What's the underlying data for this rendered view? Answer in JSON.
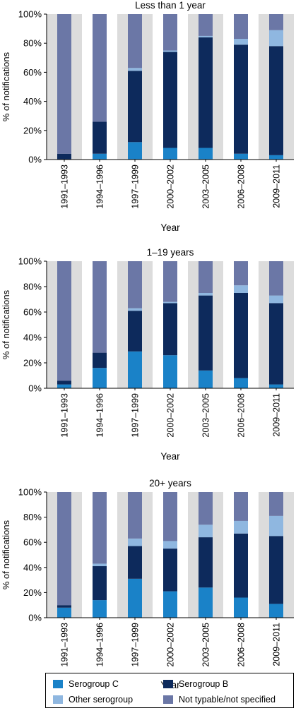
{
  "chart_data": [
    {
      "type": "bar",
      "stacked": true,
      "title": "Less than 1 year",
      "xlabel": "Year",
      "ylabel": "% of notifications",
      "ylim": [
        0,
        100
      ],
      "yticks": [
        "0%",
        "20%",
        "40%",
        "60%",
        "80%",
        "100%"
      ],
      "categories": [
        "1991–1993",
        "1994–1996",
        "1997–1999",
        "2000–2002",
        "2003–2005",
        "2006–2008",
        "2009–2011"
      ],
      "series": [
        {
          "name": "Serogroup C",
          "values": [
            0,
            4,
            12,
            8,
            8,
            4,
            3
          ]
        },
        {
          "name": "Serogroup B",
          "values": [
            4,
            22,
            49,
            66,
            76,
            75,
            75
          ]
        },
        {
          "name": "Other serogroup",
          "values": [
            0,
            0,
            2,
            1,
            1,
            4,
            11
          ]
        },
        {
          "name": "Not typable/not specified",
          "values": [
            96,
            74,
            37,
            25,
            15,
            17,
            11
          ]
        }
      ]
    },
    {
      "type": "bar",
      "stacked": true,
      "title": "1–19 years",
      "xlabel": "Year",
      "ylabel": "% of notifications",
      "ylim": [
        0,
        100
      ],
      "yticks": [
        "0%",
        "20%",
        "40%",
        "60%",
        "80%",
        "100%"
      ],
      "categories": [
        "1991–1993",
        "1994–1996",
        "1997–1999",
        "2000–2002",
        "2003–2005",
        "2006–2008",
        "2009–2011"
      ],
      "series": [
        {
          "name": "Serogroup C",
          "values": [
            3,
            16,
            29,
            26,
            14,
            8,
            3
          ]
        },
        {
          "name": "Serogroup B",
          "values": [
            3,
            12,
            32,
            41,
            59,
            67,
            64
          ]
        },
        {
          "name": "Other serogroup",
          "values": [
            0,
            0,
            2,
            1,
            2,
            6,
            6
          ]
        },
        {
          "name": "Not typable/not specified",
          "values": [
            94,
            72,
            37,
            32,
            25,
            19,
            27
          ]
        }
      ]
    },
    {
      "type": "bar",
      "stacked": true,
      "title": "20+ years",
      "xlabel": "Year",
      "ylabel": "% of notifications",
      "ylim": [
        0,
        100
      ],
      "yticks": [
        "0%",
        "20%",
        "40%",
        "60%",
        "80%",
        "100%"
      ],
      "categories": [
        "1991–1993",
        "1994–1996",
        "1997–1999",
        "2000–2002",
        "2003–2005",
        "2006–2008",
        "2009–2011"
      ],
      "series": [
        {
          "name": "Serogroup C",
          "values": [
            8,
            14,
            31,
            21,
            24,
            16,
            11
          ]
        },
        {
          "name": "Serogroup B",
          "values": [
            2,
            27,
            26,
            34,
            40,
            51,
            54
          ]
        },
        {
          "name": "Other serogroup",
          "values": [
            0,
            2,
            6,
            6,
            10,
            10,
            16
          ]
        },
        {
          "name": "Not typable/not specified",
          "values": [
            90,
            57,
            37,
            39,
            26,
            23,
            19
          ]
        }
      ]
    }
  ],
  "colors": {
    "Serogroup C": "#1a82c8",
    "Serogroup B": "#0d2a5c",
    "Other serogroup": "#8fb7e0",
    "Not typable/not specified": "#6b77a6"
  },
  "legend": {
    "items": [
      {
        "label": "Serogroup C",
        "color": "#1a82c8"
      },
      {
        "label": "Serogroup B",
        "color": "#0d2a5c"
      },
      {
        "label": "Other serogroup",
        "color": "#8fb7e0"
      },
      {
        "label": "Not typable/not specified",
        "color": "#6b77a6"
      }
    ]
  }
}
